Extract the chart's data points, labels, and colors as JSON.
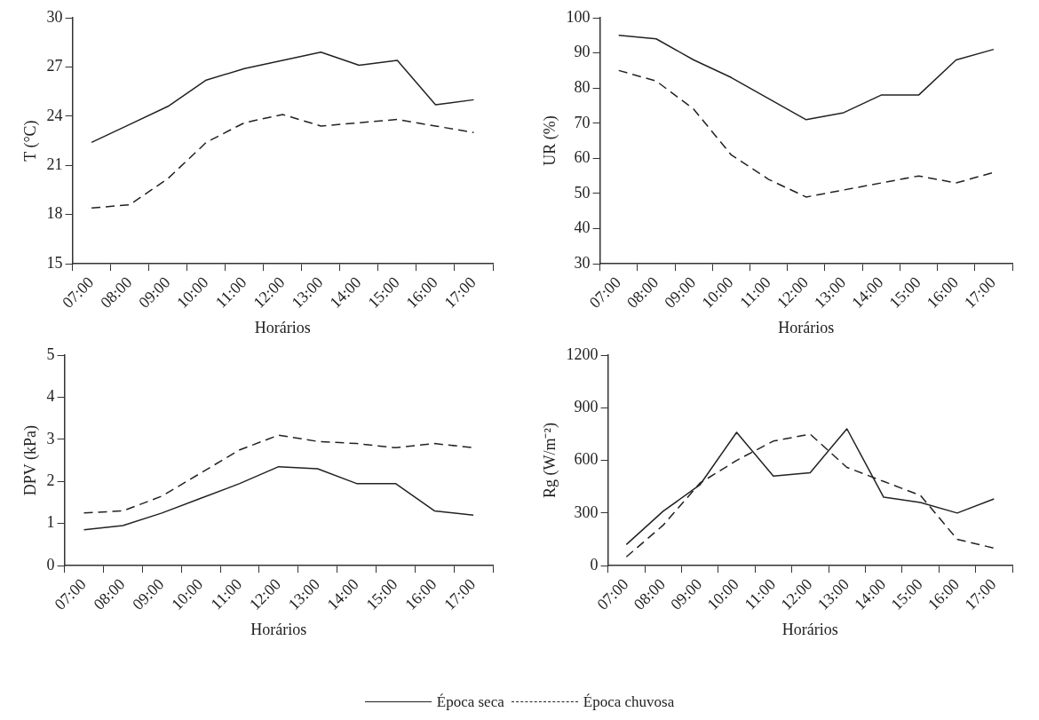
{
  "chart_data": [
    {
      "type": "line",
      "categories": [
        "07:00",
        "08:00",
        "09:00",
        "10:00",
        "11:00",
        "12:00",
        "13:00",
        "14:00",
        "15:00",
        "16:00",
        "17:00"
      ],
      "xlabel": "Horários",
      "ylabel": "T (°C)",
      "ylim": [
        15,
        30
      ],
      "yticks": [
        15,
        18,
        21,
        24,
        27,
        30
      ],
      "grid": false,
      "legend": "bottom",
      "series": [
        {
          "name": "Época seca",
          "color": "#222222",
          "line_style": "solid",
          "values": [
            22.4,
            23.5,
            24.6,
            26.2,
            26.9,
            27.4,
            27.9,
            27.1,
            27.4,
            24.7,
            25.0
          ]
        },
        {
          "name": "Época chuvosa",
          "color": "#222222",
          "line_style": "dashed",
          "values": [
            18.4,
            18.6,
            20.2,
            22.4,
            23.6,
            24.1,
            23.4,
            23.6,
            23.8,
            23.4,
            23.0
          ]
        }
      ]
    },
    {
      "type": "line",
      "categories": [
        "07:00",
        "08:00",
        "09:00",
        "10:00",
        "11:00",
        "12:00",
        "13:00",
        "14:00",
        "15:00",
        "16:00",
        "17:00"
      ],
      "xlabel": "Horários",
      "ylabel": "UR (%)",
      "ylim": [
        30,
        100
      ],
      "yticks": [
        30,
        40,
        50,
        60,
        70,
        80,
        90,
        100
      ],
      "grid": false,
      "series": [
        {
          "name": "Época seca",
          "color": "#222222",
          "line_style": "solid",
          "values": [
            95,
            94,
            88,
            83,
            77,
            71,
            73,
            78,
            78,
            88,
            91
          ]
        },
        {
          "name": "Época chuvosa",
          "color": "#222222",
          "line_style": "dashed",
          "values": [
            85,
            82,
            74,
            61,
            54,
            49,
            51,
            53,
            55,
            53,
            56
          ]
        }
      ]
    },
    {
      "type": "line",
      "categories": [
        "07:00",
        "08:00",
        "09:00",
        "10:00",
        "11:00",
        "12:00",
        "13:00",
        "14:00",
        "15:00",
        "16:00",
        "17:00"
      ],
      "xlabel": "Horários",
      "ylabel": "DPV (kPa)",
      "ylim": [
        0,
        5
      ],
      "yticks": [
        0,
        1,
        2,
        3,
        4,
        5
      ],
      "grid": false,
      "series": [
        {
          "name": "Época seca",
          "color": "#222222",
          "line_style": "solid",
          "values": [
            0.85,
            0.95,
            1.25,
            1.6,
            1.95,
            2.35,
            2.3,
            1.95,
            1.95,
            1.3,
            1.2
          ]
        },
        {
          "name": "Época chuvosa",
          "color": "#222222",
          "line_style": "dashed",
          "values": [
            1.25,
            1.3,
            1.65,
            2.2,
            2.75,
            3.1,
            2.95,
            2.9,
            2.8,
            2.9,
            2.8
          ]
        }
      ]
    },
    {
      "type": "line",
      "categories": [
        "07:00",
        "08:00",
        "09:00",
        "10:00",
        "11:00",
        "12:00",
        "13:00",
        "14:00",
        "15:00",
        "16:00",
        "17:00"
      ],
      "xlabel": "Horários",
      "ylabel": "Rg (W/m⁻²)",
      "ylim": [
        0,
        1200
      ],
      "yticks": [
        0,
        300,
        600,
        900,
        1200
      ],
      "grid": false,
      "series": [
        {
          "name": "Época seca",
          "color": "#222222",
          "line_style": "solid",
          "values": [
            120,
            310,
            460,
            760,
            510,
            530,
            780,
            390,
            360,
            300,
            380
          ]
        },
        {
          "name": "Época chuvosa",
          "color": "#222222",
          "line_style": "dashed",
          "values": [
            50,
            230,
            470,
            600,
            710,
            750,
            560,
            480,
            400,
            150,
            100
          ]
        }
      ]
    }
  ]
}
